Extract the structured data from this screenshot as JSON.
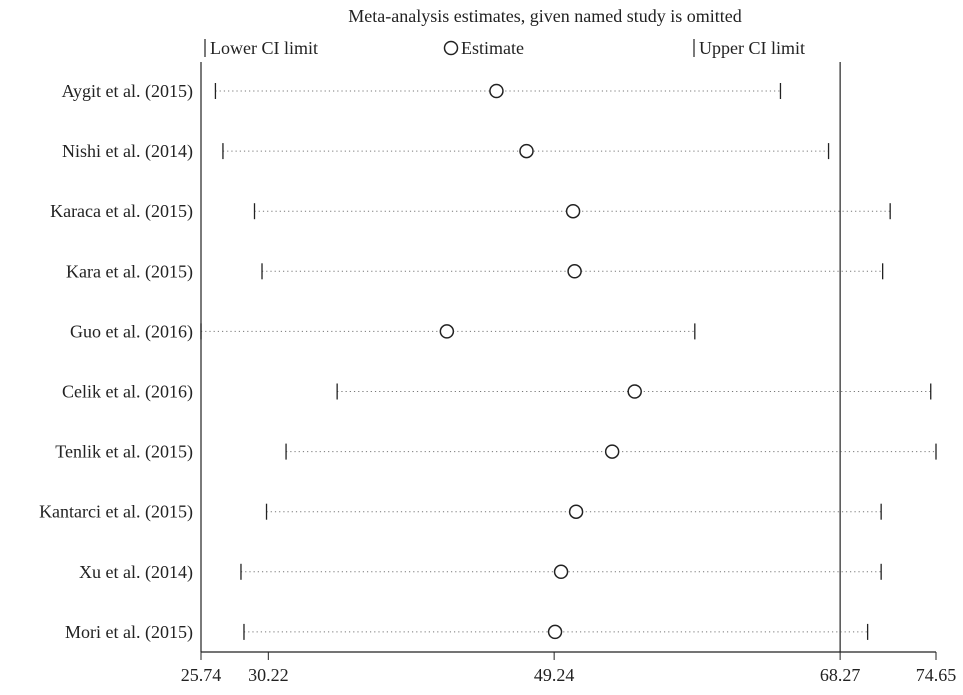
{
  "chart_data": {
    "type": "scatter",
    "title": "Meta-analysis estimates, given named study is omitted",
    "legend": {
      "placement": "top",
      "entries": [
        {
          "symbol": "tick",
          "label": "Lower CI limit"
        },
        {
          "symbol": "circle",
          "label": "Estimate"
        },
        {
          "symbol": "tick",
          "label": "Upper CI limit"
        }
      ]
    },
    "xlim": [
      25.74,
      74.65
    ],
    "xticks": [
      25.74,
      30.22,
      49.24,
      68.27,
      74.65
    ],
    "xtick_labels": [
      "25.74",
      "30.22",
      "49.24",
      "68.27",
      "74.65"
    ],
    "reference_line": 68.27,
    "xlabel": "",
    "ylabel": "",
    "studies": [
      {
        "name": "Aygit et al. (2015)",
        "lower": 26.7,
        "estimate": 45.4,
        "upper": 64.3
      },
      {
        "name": "Nishi et al. (2014)",
        "lower": 27.2,
        "estimate": 47.4,
        "upper": 67.5
      },
      {
        "name": "Karaca et al. (2015)",
        "lower": 29.3,
        "estimate": 50.5,
        "upper": 71.6
      },
      {
        "name": "Kara et al. (2015)",
        "lower": 29.8,
        "estimate": 50.6,
        "upper": 71.1
      },
      {
        "name": "Guo et al. (2016)",
        "lower": 25.74,
        "estimate": 42.1,
        "upper": 58.6
      },
      {
        "name": "Celik et al. (2016)",
        "lower": 34.8,
        "estimate": 54.6,
        "upper": 74.3
      },
      {
        "name": "Tenlik et al. (2015)",
        "lower": 31.4,
        "estimate": 53.1,
        "upper": 74.65
      },
      {
        "name": "Kantarci et al. (2015)",
        "lower": 30.1,
        "estimate": 50.7,
        "upper": 71.0
      },
      {
        "name": "Xu et al. (2014)",
        "lower": 28.4,
        "estimate": 49.7,
        "upper": 71.0
      },
      {
        "name": "Mori et al. (2015)",
        "lower": 28.6,
        "estimate": 49.3,
        "upper": 70.1
      }
    ]
  }
}
